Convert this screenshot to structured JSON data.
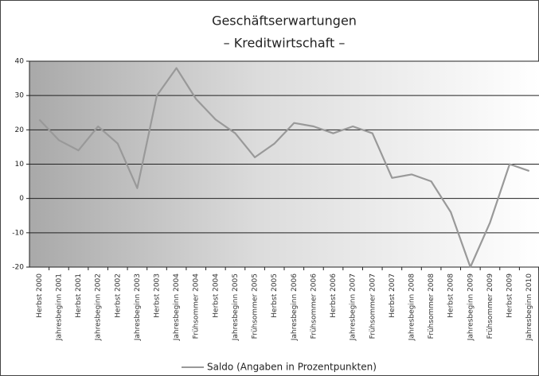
{
  "chart_data": {
    "type": "line",
    "title": "Geschäftserwartungen",
    "subtitle": "– Kreditwirtschaft –",
    "categories": [
      "Herbst 2000",
      "Jahresbeginn 2001",
      "Herbst 2001",
      "Jahresbeginn 2002",
      "Herbst 2002",
      "Jahresbeginn 2003",
      "Herbst 2003",
      "Jahresbeginn 2004",
      "Frühsommer 2004",
      "Herbst 2004",
      "Jahresbeginn 2005",
      "Frühsommer 2005",
      "Herbst 2005",
      "Jahresbeginn 2006",
      "Frühsommer 2006",
      "Herbst 2006",
      "Jahresbeginn 2007",
      "Frühsommer 2007",
      "Herbst 2007",
      "Jahresbeginn 2008",
      "Frühsommer 2008",
      "Herbst 2008",
      "Jahresbeginn 2009",
      "Frühsommer 2009",
      "Herbst 2009",
      "Jahresbeginn 2010"
    ],
    "series": [
      {
        "name": "Saldo (Angaben in Prozentpunkten)",
        "color": "#999999",
        "values": [
          23,
          17,
          14,
          21,
          16,
          3,
          30,
          38,
          29,
          23,
          19,
          12,
          16,
          22,
          21,
          19,
          21,
          19,
          6,
          7,
          5,
          -4,
          -20,
          -7,
          10,
          8
        ]
      }
    ],
    "ylim": [
      -20,
      40
    ],
    "yticks": [
      -20,
      -10,
      0,
      10,
      20,
      30,
      40
    ],
    "grid": true,
    "legend": "bottom"
  }
}
